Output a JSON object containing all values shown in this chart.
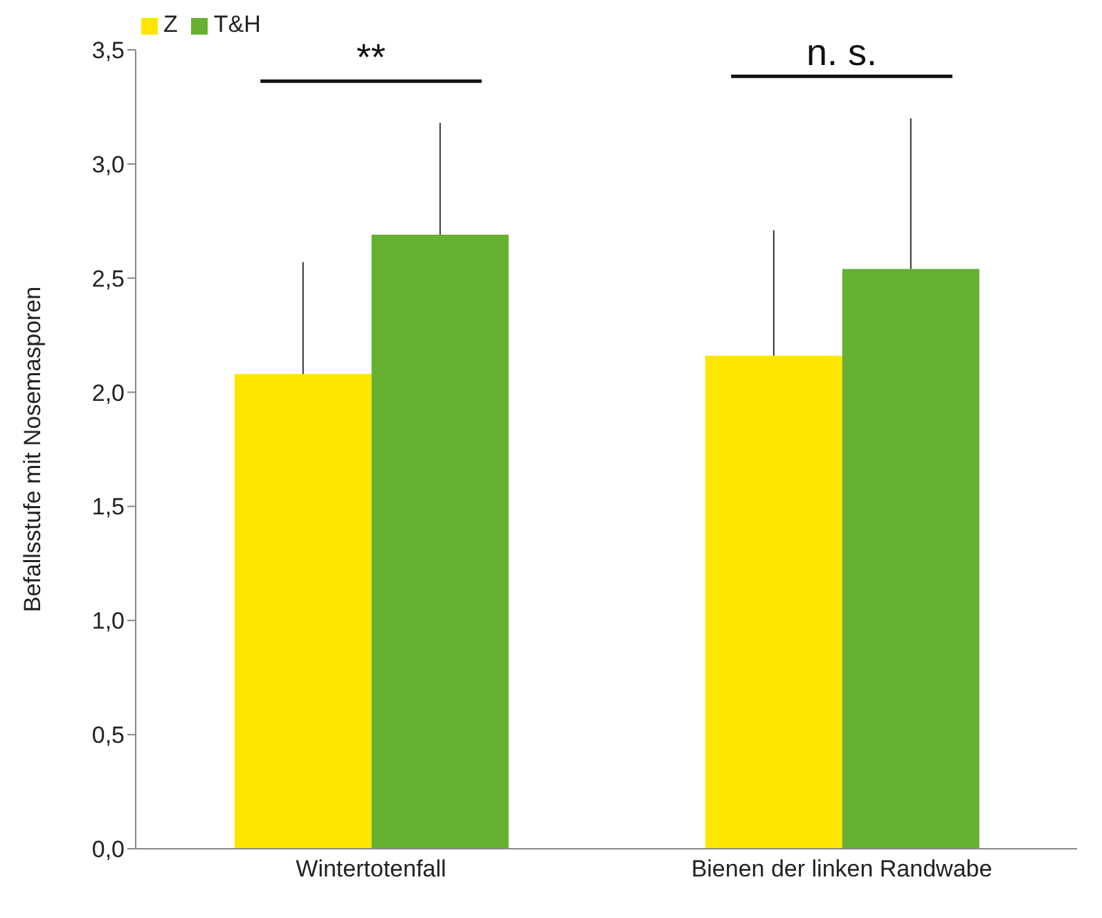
{
  "chart_data": {
    "type": "bar",
    "ylabel": "Befallsstufe mit Nosemasporen",
    "categories": [
      "Wintertotenfall",
      "Bienen der linken Randwabe"
    ],
    "series": [
      {
        "name": "Z",
        "color": "#ffe600",
        "values": [
          2.08,
          2.16
        ],
        "errors": [
          [
            2.08,
            2.57
          ],
          [
            2.16,
            2.71
          ]
        ]
      },
      {
        "name": "T&H",
        "color": "#66b032",
        "values": [
          2.69,
          2.54
        ],
        "errors": [
          [
            2.69,
            3.18
          ],
          [
            2.54,
            3.2
          ]
        ]
      }
    ],
    "ylim": [
      0,
      3.5
    ],
    "yticks": [
      {
        "value": 0,
        "label": "0,0"
      },
      {
        "value": 0.5,
        "label": "0,5"
      },
      {
        "value": 1,
        "label": "1,0"
      },
      {
        "value": 1.5,
        "label": "1,5"
      },
      {
        "value": 2,
        "label": "2,0"
      },
      {
        "value": 2.5,
        "label": "2,5"
      },
      {
        "value": 3,
        "label": "3,0"
      },
      {
        "value": 3.5,
        "label": "3,5"
      }
    ],
    "annotations": [
      "**",
      "n. s."
    ],
    "legend": "top left",
    "grid": false
  }
}
